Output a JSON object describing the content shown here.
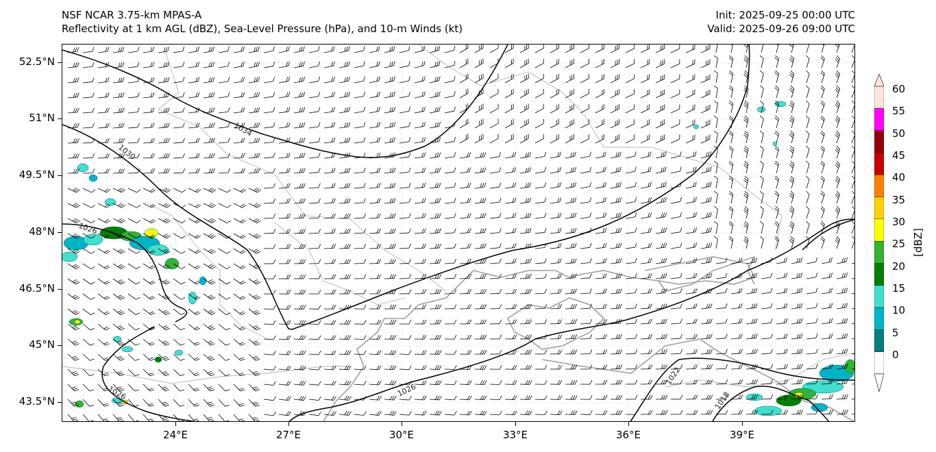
{
  "header": {
    "model_line": "NSF NCAR 3.75-km MPAS-A",
    "field_line": "Reflectivity at 1 km AGL (dBZ), Sea-Level Pressure (hPa), and 10-m Winds (kt)",
    "init_line": "Init: 2025-09-25 00:00 UTC",
    "valid_line": "Valid: 2025-09-26 09:00 UTC"
  },
  "axes": {
    "lat_labels": [
      "52.5°N",
      "51°N",
      "49.5°N",
      "48°N",
      "46.5°N",
      "45°N",
      "43.5°N"
    ],
    "lon_labels": [
      "24°E",
      "27°E",
      "30°E",
      "33°E",
      "36°E",
      "39°E"
    ]
  },
  "isobars": [
    {
      "label": "1034"
    },
    {
      "label": "1030"
    },
    {
      "label": "1026"
    },
    {
      "label": "1026"
    },
    {
      "label": "1026"
    },
    {
      "label": "1022"
    },
    {
      "label": "1018"
    }
  ],
  "colorbar": {
    "units": "[dBZ]",
    "levels": [
      "0",
      "5",
      "10",
      "15",
      "20",
      "25",
      "30",
      "35",
      "40",
      "45",
      "50",
      "55",
      "60"
    ],
    "colors": [
      "#ffffff",
      "#008080",
      "#00b4c8",
      "#40e0d0",
      "#008000",
      "#32b432",
      "#ffff00",
      "#ffd200",
      "#ff8000",
      "#c80000",
      "#960000",
      "#ff00ff",
      "#ffe6dc"
    ]
  },
  "colors": {
    "barb": "#000000",
    "isobar": "#000000",
    "coast": "#a0a0a0",
    "border": "#b4b4b4",
    "grid": "#e6e6e6"
  }
}
